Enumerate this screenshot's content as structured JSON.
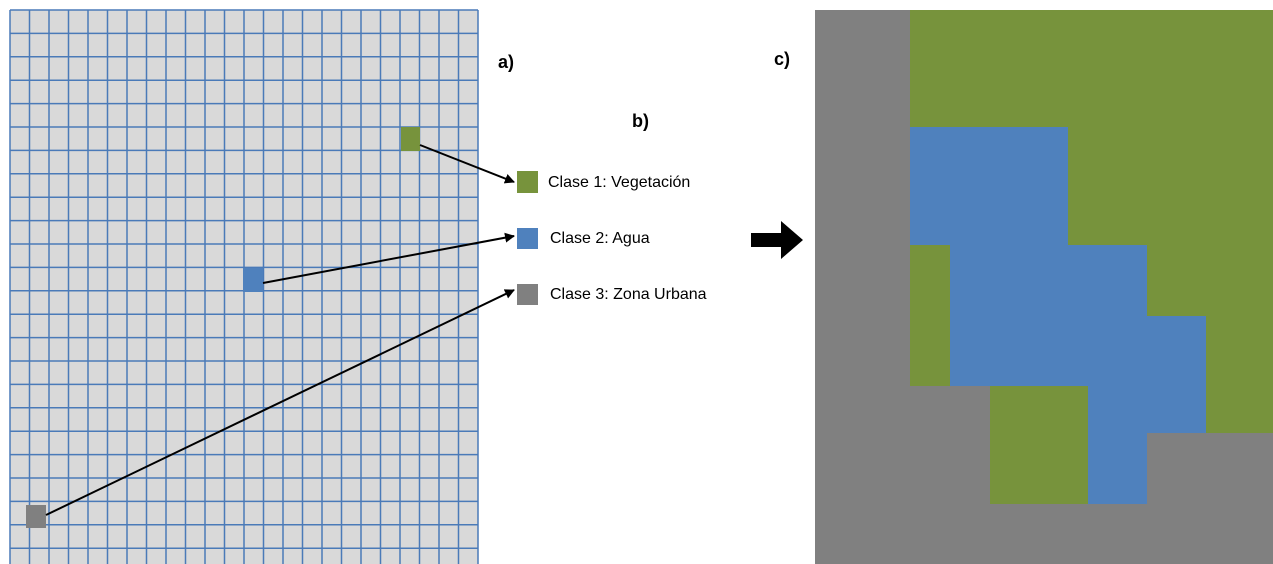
{
  "panels": {
    "a": "a)",
    "b": "b)",
    "c": "c)"
  },
  "legend": [
    {
      "label": "Clase 1: Vegetación",
      "color": "#77933c"
    },
    {
      "label": "Clase 2: Agua",
      "color": "#4f81bd"
    },
    {
      "label": "Clase 3: Zona Urbana",
      "color": "#808080"
    }
  ]
}
